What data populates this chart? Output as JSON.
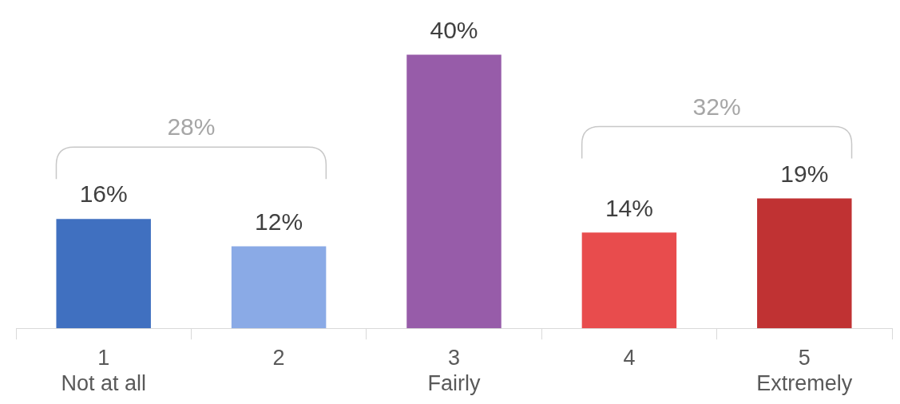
{
  "chart_data": {
    "type": "bar",
    "categories": [
      "1\nNot at all",
      "2",
      "3\nFairly",
      "4",
      "5\nExtremely"
    ],
    "values": [
      16,
      12,
      40,
      14,
      19
    ],
    "colors": [
      "#4070c0",
      "#8aaae6",
      "#975ca9",
      "#e84c4d",
      "#c03233"
    ],
    "value_labels": [
      "16%",
      "12%",
      "40%",
      "14%",
      "19%"
    ],
    "annotations": [
      "28%",
      "32%"
    ],
    "grid": false,
    "legend": false
  }
}
